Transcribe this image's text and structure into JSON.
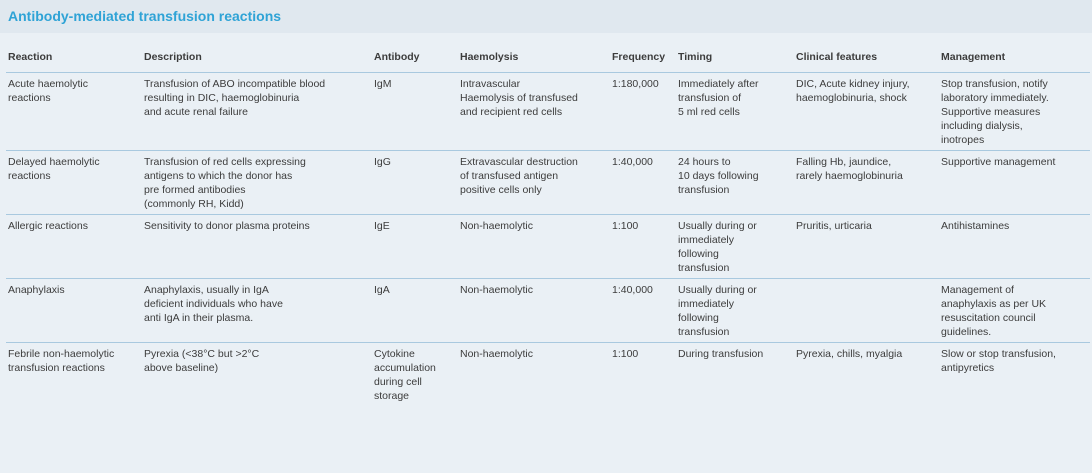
{
  "title": "Antibody-mediated transfusion reactions",
  "columns": [
    "Reaction",
    "Description",
    "Antibody",
    "Haemolysis",
    "Frequency",
    "Timing",
    "Clinical features",
    "Management"
  ],
  "rows": [
    {
      "reaction": "Acute haemolytic\nreactions",
      "description": "Transfusion of ABO incompatible blood\nresulting in DIC, haemoglobinuria\nand acute renal failure",
      "antibody": "IgM",
      "haemolysis": "Intravascular\nHaemolysis of transfused\nand recipient red cells",
      "frequency": "1:180,000",
      "timing": "Immediately after\ntransfusion of\n5 ml red cells",
      "clinical": "DIC, Acute kidney injury,\nhaemoglobinuria, shock",
      "management": "Stop transfusion, notify\nlaboratory immediately.\nSupportive measures\nincluding dialysis,\ninotropes"
    },
    {
      "reaction": "Delayed haemolytic\nreactions",
      "description": "Transfusion of red cells expressing\nantigens to which the donor has\npre formed antibodies\n(commonly RH, Kidd)",
      "antibody": "IgG",
      "haemolysis": "Extravascular destruction\nof transfused antigen\npositive cells only",
      "frequency": "1:40,000",
      "timing": "24 hours to\n10 days following\ntransfusion",
      "clinical": "Falling Hb, jaundice,\nrarely haemoglobinuria",
      "management": "Supportive management"
    },
    {
      "reaction": "Allergic reactions",
      "description": "Sensitivity to donor plasma proteins",
      "antibody": "IgE",
      "haemolysis": "Non-haemolytic",
      "frequency": "1:100",
      "timing": "Usually during or\nimmediately\nfollowing\ntransfusion",
      "clinical": "Pruritis, urticaria",
      "management": "Antihistamines"
    },
    {
      "reaction": "Anaphylaxis",
      "description": "Anaphylaxis, usually in IgA\ndeficient individuals who have\nanti IgA in their plasma.",
      "antibody": "IgA",
      "haemolysis": "Non-haemolytic",
      "frequency": "1:40,000",
      "timing": "Usually during or\nimmediately\nfollowing\ntransfusion",
      "clinical": "",
      "management": "Management of\nanaphylaxis as per UK\nresuscitation council\nguidelines."
    },
    {
      "reaction": "Febrile non-haemolytic\ntransfusion reactions",
      "description": "Pyrexia (<38°C but >2°C\nabove baseline)",
      "antibody": "Cytokine\naccumulation\nduring cell\nstorage",
      "haemolysis": "Non-haemolytic",
      "frequency": "1:100",
      "timing": "During transfusion",
      "clinical": "Pyrexia, chills, myalgia",
      "management": "Slow or stop transfusion,\nantipyretics"
    }
  ]
}
